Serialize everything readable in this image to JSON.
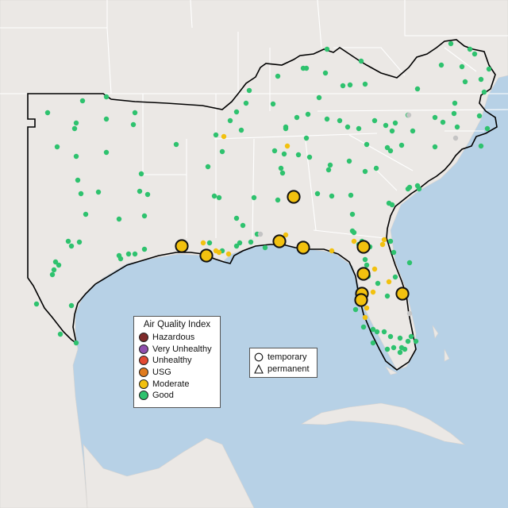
{
  "colors": {
    "water": "#b7d1e6",
    "land": "#ebe8e5",
    "region_land": "#e4e1de",
    "state_border": "#ffffff",
    "region_border": "#000000",
    "sensor_missing": "#c4c4c4"
  },
  "legend": {
    "title": "Air Quality Index",
    "categories": [
      {
        "label": "Hazardous",
        "color": "#7e2a2a"
      },
      {
        "label": "Very Unhealthy",
        "color": "#8f4fae"
      },
      {
        "label": "Unhealthy",
        "color": "#e34a33"
      },
      {
        "label": "USG",
        "color": "#e07b1e"
      },
      {
        "label": "Moderate",
        "color": "#f2c10f"
      },
      {
        "label": "Good",
        "color": "#2ec26e"
      }
    ]
  },
  "monitor_types": {
    "items": [
      {
        "label": "temporary",
        "icon": "circle-icon"
      },
      {
        "label": "permanent",
        "icon": "triangle-icon"
      }
    ]
  }
}
